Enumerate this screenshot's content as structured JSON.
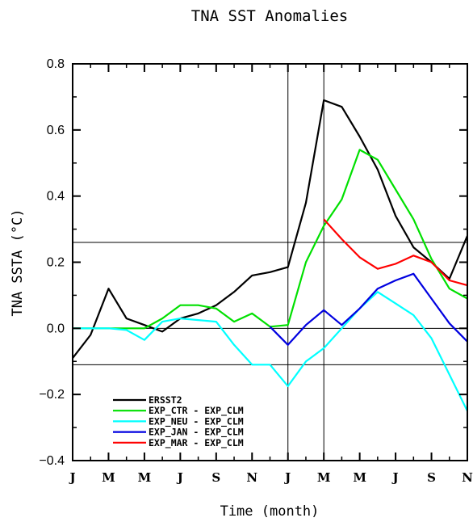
{
  "chart_data": {
    "type": "line",
    "title": "TNA SST Anomalies",
    "xlabel": "Time (month)",
    "ylabel": "TNA SSTA (°C)",
    "ylim": [
      -0.4,
      0.8
    ],
    "yticks": [
      "0.8",
      "0.6",
      "0.4",
      "0.2",
      "0.0",
      "−0.2",
      "−0.4"
    ],
    "ytick_values": [
      0.8,
      0.6,
      0.4,
      0.2,
      0.0,
      -0.2,
      -0.4
    ],
    "xlim": [
      0,
      22
    ],
    "x": [
      0,
      1,
      2,
      3,
      4,
      5,
      6,
      7,
      8,
      9,
      10,
      11,
      12,
      13,
      14,
      15,
      16,
      17,
      18,
      19,
      20,
      21,
      22
    ],
    "xtick_labels": [
      "J",
      "M",
      "M",
      "J",
      "S",
      "N",
      "J",
      "M",
      "M",
      "J",
      "S",
      "N"
    ],
    "xtick_positions": [
      0,
      2,
      4,
      6,
      8,
      10,
      12,
      14,
      16,
      18,
      20,
      22
    ],
    "hlines": [
      0.26,
      0.0,
      -0.11
    ],
    "vlines": [
      12,
      14
    ],
    "legend_position": "bottom-left",
    "series": [
      {
        "name": "ERSST2",
        "color": "#000000",
        "values": [
          -0.09,
          -0.02,
          0.12,
          0.03,
          0.01,
          -0.01,
          0.03,
          0.045,
          0.07,
          0.11,
          0.16,
          0.17,
          0.185,
          0.38,
          0.69,
          0.67,
          0.58,
          0.48,
          0.34,
          0.245,
          0.2,
          0.15,
          0.28
        ]
      },
      {
        "name": "EXP_CTR - EXP_CLM",
        "color": "#00e000",
        "values": [
          0.0,
          0.0,
          0.0,
          0.0,
          0.0,
          0.03,
          0.07,
          0.07,
          0.06,
          0.02,
          0.045,
          0.005,
          0.01,
          0.2,
          0.31,
          0.39,
          0.54,
          0.51,
          0.42,
          0.33,
          0.21,
          0.12,
          0.09
        ]
      },
      {
        "name": "EXP_NEU - EXP_CLM",
        "color": "#00ffff",
        "values": [
          0.0,
          0.0,
          0.0,
          -0.005,
          -0.035,
          0.02,
          0.03,
          0.025,
          0.02,
          -0.05,
          -0.11,
          -0.11,
          -0.175,
          -0.1,
          -0.06,
          0.0,
          0.06,
          0.11,
          0.075,
          0.04,
          -0.03,
          -0.14,
          -0.25
        ]
      },
      {
        "name": "EXP_JAN - EXP_CLM",
        "color": "#0000e0",
        "values": [
          null,
          null,
          null,
          null,
          null,
          null,
          null,
          null,
          null,
          null,
          null,
          0.005,
          -0.05,
          0.01,
          0.055,
          0.01,
          0.06,
          0.12,
          0.145,
          0.165,
          0.09,
          0.015,
          -0.04
        ]
      },
      {
        "name": "EXP_MAR - EXP_CLM",
        "color": "#ff0000",
        "values": [
          null,
          null,
          null,
          null,
          null,
          null,
          null,
          null,
          null,
          null,
          null,
          null,
          null,
          null,
          0.33,
          0.27,
          0.215,
          0.18,
          0.195,
          0.22,
          0.2,
          0.145,
          0.13
        ]
      }
    ]
  }
}
